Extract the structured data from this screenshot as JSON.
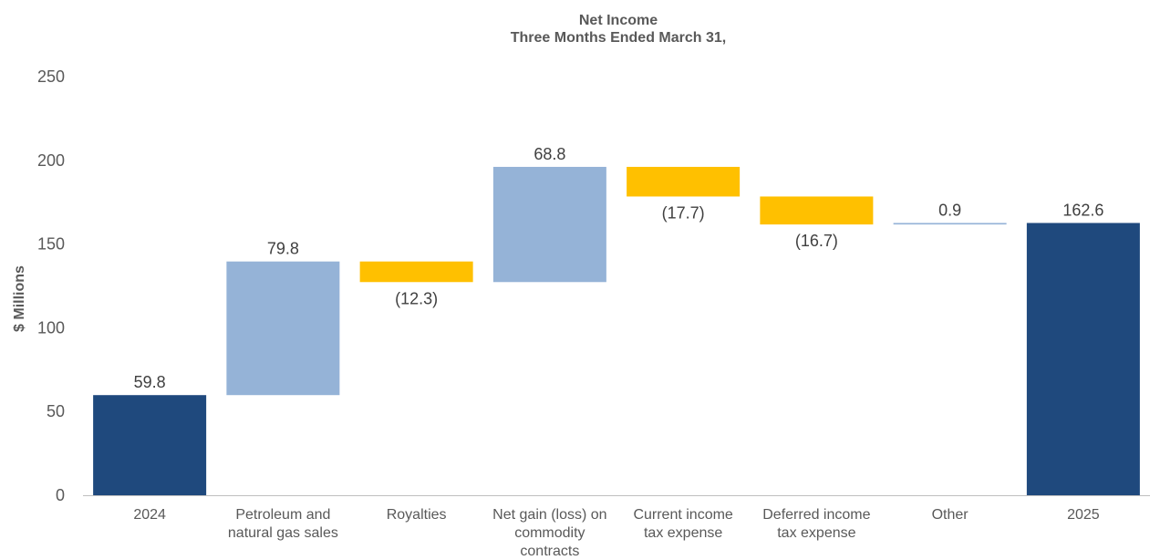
{
  "chart_data": {
    "type": "bar",
    "subtype": "waterfall",
    "title": [
      "Net Income",
      "Three Months Ended March 31,"
    ],
    "ylabel": "$ Millions",
    "ylim": [
      0,
      250
    ],
    "yticks": [
      0,
      50,
      100,
      150,
      200,
      250
    ],
    "grid": false,
    "legend": "none",
    "categories": [
      [
        "2024"
      ],
      [
        "Petroleum and",
        "natural gas sales"
      ],
      [
        "Royalties"
      ],
      [
        "Net gain (loss) on",
        "commodity",
        "contracts"
      ],
      [
        "Current income",
        "tax expense"
      ],
      [
        "Deferred income",
        "tax expense"
      ],
      [
        "Other"
      ],
      [
        "2025"
      ]
    ],
    "bars": [
      {
        "kind": "total",
        "start": 0,
        "end": 59.8,
        "label": "59.8"
      },
      {
        "kind": "increase",
        "start": 59.8,
        "end": 139.6,
        "label": "79.8"
      },
      {
        "kind": "decrease",
        "start": 139.6,
        "end": 127.3,
        "label": "(12.3)"
      },
      {
        "kind": "increase",
        "start": 127.3,
        "end": 196.1,
        "label": "68.8"
      },
      {
        "kind": "decrease",
        "start": 196.1,
        "end": 178.4,
        "label": "(17.7)"
      },
      {
        "kind": "decrease",
        "start": 178.4,
        "end": 161.7,
        "label": "(16.7)"
      },
      {
        "kind": "increase",
        "start": 161.7,
        "end": 162.6,
        "label": "0.9"
      },
      {
        "kind": "total",
        "start": 0,
        "end": 162.6,
        "label": "162.6"
      }
    ],
    "colors": {
      "total": "#1f497d",
      "increase": "#95b3d7",
      "decrease": "#ffc000",
      "axis": "#bfbfbf",
      "text": "#595959",
      "label": "#404040"
    }
  }
}
